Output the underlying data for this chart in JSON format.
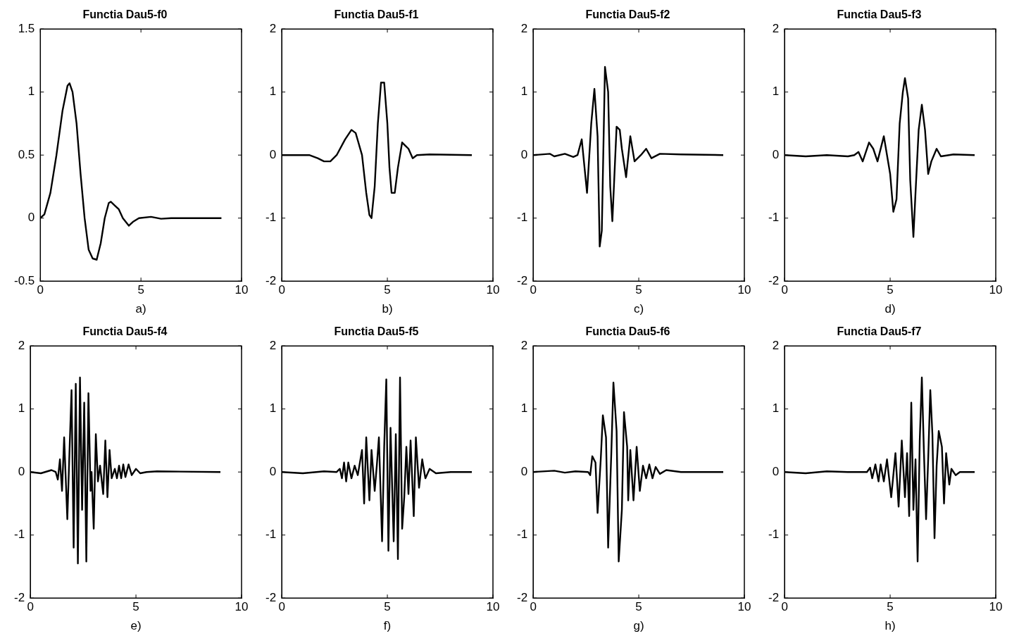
{
  "chart_data": [
    {
      "type": "line",
      "title": "Functia Dau5-f0",
      "xlabel": "a)",
      "color": "#000000",
      "marker": "none",
      "xlim": [
        0,
        10
      ],
      "xticks": [
        0,
        5,
        10
      ],
      "ylim": [
        -0.5,
        1.5
      ],
      "yticks": [
        -0.5,
        0,
        0.5,
        1,
        1.5
      ],
      "x": [
        0,
        0.2,
        0.5,
        0.8,
        1.1,
        1.35,
        1.45,
        1.6,
        1.8,
        2.0,
        2.2,
        2.4,
        2.6,
        2.8,
        3.0,
        3.2,
        3.4,
        3.5,
        3.7,
        3.9,
        4.1,
        4.4,
        4.6,
        4.9,
        5.5,
        6,
        6.5,
        9
      ],
      "values": [
        0,
        0.03,
        0.2,
        0.5,
        0.85,
        1.05,
        1.07,
        1.0,
        0.75,
        0.35,
        0.0,
        -0.25,
        -0.32,
        -0.33,
        -0.2,
        0.0,
        0.12,
        0.13,
        0.1,
        0.07,
        0.0,
        -0.06,
        -0.03,
        0.0,
        0.01,
        -0.005,
        0,
        0
      ]
    },
    {
      "type": "line",
      "title": "Functia Dau5-f1",
      "xlabel": "b)",
      "color": "#000000",
      "marker": "none",
      "xlim": [
        0,
        10
      ],
      "xticks": [
        0,
        5,
        10
      ],
      "ylim": [
        -2,
        2
      ],
      "yticks": [
        -2,
        -1,
        0,
        1,
        2
      ],
      "x": [
        0,
        1.3,
        1.7,
        2.0,
        2.3,
        2.6,
        3.0,
        3.3,
        3.5,
        3.8,
        4.0,
        4.15,
        4.25,
        4.4,
        4.55,
        4.7,
        4.85,
        5.0,
        5.1,
        5.2,
        5.35,
        5.5,
        5.7,
        5.85,
        6.0,
        6.2,
        6.4,
        7,
        9
      ],
      "values": [
        0,
        0,
        -0.05,
        -0.1,
        -0.1,
        0.0,
        0.25,
        0.4,
        0.35,
        0.0,
        -0.6,
        -0.95,
        -1.0,
        -0.5,
        0.5,
        1.15,
        1.15,
        0.5,
        -0.2,
        -0.6,
        -0.6,
        -0.2,
        0.2,
        0.15,
        0.1,
        -0.05,
        0.0,
        0.01,
        0
      ]
    },
    {
      "type": "line",
      "title": "Functia Dau5-f2",
      "xlabel": "c)",
      "color": "#000000",
      "marker": "none",
      "xlim": [
        0,
        10
      ],
      "xticks": [
        0,
        5,
        10
      ],
      "ylim": [
        -2,
        2
      ],
      "yticks": [
        -2,
        -1,
        0,
        1,
        2
      ],
      "x": [
        0,
        0.8,
        1.0,
        1.5,
        1.9,
        2.1,
        2.3,
        2.55,
        2.75,
        2.9,
        3.05,
        3.15,
        3.25,
        3.4,
        3.55,
        3.65,
        3.75,
        3.95,
        4.1,
        4.2,
        4.4,
        4.6,
        4.8,
        5.1,
        5.35,
        5.6,
        6,
        7,
        9
      ],
      "values": [
        0,
        0.02,
        -0.02,
        0.02,
        -0.03,
        0.0,
        0.25,
        -0.6,
        0.5,
        1.05,
        0.3,
        -1.45,
        -1.2,
        1.4,
        1.0,
        -0.5,
        -1.05,
        0.45,
        0.4,
        0.1,
        -0.35,
        0.3,
        -0.1,
        0.0,
        0.1,
        -0.05,
        0.02,
        0.01,
        0
      ]
    },
    {
      "type": "line",
      "title": "Functia Dau5-f3",
      "xlabel": "d)",
      "color": "#000000",
      "marker": "none",
      "xlim": [
        0,
        10
      ],
      "xticks": [
        0,
        5,
        10
      ],
      "ylim": [
        -2,
        2
      ],
      "yticks": [
        -2,
        -1,
        0,
        1,
        2
      ],
      "x": [
        0,
        1,
        2,
        3,
        3.3,
        3.5,
        3.7,
        4.0,
        4.2,
        4.4,
        4.7,
        4.85,
        5.0,
        5.15,
        5.3,
        5.45,
        5.6,
        5.7,
        5.85,
        5.95,
        6.1,
        6.2,
        6.35,
        6.5,
        6.65,
        6.8,
        6.95,
        7.2,
        7.4,
        8,
        9
      ],
      "values": [
        0,
        -0.02,
        0.0,
        -0.02,
        0.0,
        0.05,
        -0.1,
        0.2,
        0.1,
        -0.1,
        0.3,
        0.0,
        -0.3,
        -0.9,
        -0.7,
        0.5,
        1.0,
        1.22,
        0.9,
        -0.4,
        -1.3,
        -0.6,
        0.4,
        0.8,
        0.4,
        -0.3,
        -0.1,
        0.1,
        -0.02,
        0.01,
        0
      ]
    },
    {
      "type": "line",
      "title": "Functia Dau5-f4",
      "xlabel": "e)",
      "color": "#000000",
      "marker": "none",
      "xlim": [
        0,
        10
      ],
      "xticks": [
        0,
        5,
        10
      ],
      "ylim": [
        -2,
        2
      ],
      "yticks": [
        -2,
        -1,
        0,
        1,
        2
      ],
      "x": [
        0,
        0.5,
        1.0,
        1.2,
        1.3,
        1.4,
        1.5,
        1.6,
        1.75,
        1.85,
        1.95,
        2.05,
        2.15,
        2.25,
        2.35,
        2.45,
        2.55,
        2.65,
        2.75,
        2.85,
        2.9,
        3.0,
        3.1,
        3.2,
        3.3,
        3.45,
        3.55,
        3.65,
        3.75,
        3.85,
        4.0,
        4.1,
        4.2,
        4.3,
        4.4,
        4.5,
        4.65,
        4.8,
        5.0,
        5.2,
        5.5,
        6,
        9
      ],
      "values": [
        0,
        -0.02,
        0.03,
        0.0,
        -0.12,
        0.2,
        -0.3,
        0.55,
        -0.75,
        0.3,
        1.3,
        -1.2,
        1.4,
        -1.45,
        1.5,
        -0.6,
        1.1,
        -1.42,
        1.25,
        -0.3,
        0.0,
        -0.9,
        0.6,
        -0.15,
        0.1,
        -0.35,
        0.5,
        -0.4,
        0.35,
        -0.1,
        0.05,
        -0.1,
        0.1,
        -0.1,
        0.12,
        -0.08,
        0.12,
        -0.05,
        0.05,
        -0.02,
        0.0,
        0.01,
        0
      ]
    },
    {
      "type": "line",
      "title": "Functia Dau5-f5",
      "xlabel": "f)",
      "color": "#000000",
      "marker": "none",
      "xlim": [
        0,
        10
      ],
      "xticks": [
        0,
        5,
        10
      ],
      "ylim": [
        -2,
        2
      ],
      "yticks": [
        -2,
        -1,
        0,
        1,
        2
      ],
      "x": [
        0,
        1,
        2,
        2.6,
        2.75,
        2.85,
        2.95,
        3.05,
        3.15,
        3.3,
        3.45,
        3.6,
        3.8,
        3.9,
        4.0,
        4.15,
        4.25,
        4.4,
        4.5,
        4.6,
        4.75,
        4.85,
        4.95,
        5.05,
        5.15,
        5.3,
        5.4,
        5.5,
        5.6,
        5.7,
        5.8,
        5.9,
        6.0,
        6.1,
        6.25,
        6.35,
        6.5,
        6.65,
        6.8,
        7.0,
        7.3,
        8,
        9
      ],
      "values": [
        0,
        -0.02,
        0.01,
        0.0,
        0.05,
        -0.1,
        0.15,
        -0.15,
        0.15,
        -0.1,
        0.1,
        -0.05,
        0.35,
        -0.5,
        0.55,
        -0.45,
        0.35,
        -0.3,
        0.1,
        0.55,
        -1.1,
        0.4,
        1.47,
        -1.25,
        0.7,
        -1.1,
        0.6,
        -1.38,
        1.5,
        -0.9,
        -0.4,
        0.4,
        -0.35,
        0.5,
        -0.7,
        0.55,
        -0.25,
        0.2,
        -0.1,
        0.05,
        -0.02,
        0,
        0
      ]
    },
    {
      "type": "line",
      "title": "Functia Dau5-f6",
      "xlabel": "g)",
      "color": "#000000",
      "marker": "none",
      "xlim": [
        0,
        10
      ],
      "xticks": [
        0,
        5,
        10
      ],
      "ylim": [
        -2,
        2
      ],
      "yticks": [
        -2,
        -1,
        0,
        1,
        2
      ],
      "x": [
        0,
        1,
        1.5,
        2,
        2.6,
        2.7,
        2.8,
        2.95,
        3.05,
        3.2,
        3.3,
        3.45,
        3.55,
        3.7,
        3.8,
        3.95,
        4.05,
        4.2,
        4.3,
        4.45,
        4.5,
        4.6,
        4.75,
        4.9,
        5.05,
        5.2,
        5.35,
        5.5,
        5.65,
        5.8,
        6.0,
        6.3,
        7,
        9
      ],
      "values": [
        0,
        0.02,
        -0.01,
        0.01,
        0.0,
        -0.05,
        0.25,
        0.15,
        -0.65,
        0.2,
        0.9,
        0.55,
        -1.2,
        0.3,
        1.42,
        0.65,
        -1.42,
        -0.6,
        0.95,
        0.4,
        -0.45,
        0.35,
        -0.45,
        0.4,
        -0.3,
        0.1,
        -0.1,
        0.12,
        -0.1,
        0.08,
        -0.03,
        0.03,
        0.0,
        0
      ]
    },
    {
      "type": "line",
      "title": "Functia Dau5-f7",
      "xlabel": "h)",
      "color": "#000000",
      "marker": "none",
      "xlim": [
        0,
        10
      ],
      "xticks": [
        0,
        5,
        10
      ],
      "ylim": [
        -2,
        2
      ],
      "yticks": [
        -2,
        -1,
        0,
        1,
        2
      ],
      "x": [
        0,
        1,
        2,
        3,
        3.9,
        4.05,
        4.15,
        4.3,
        4.45,
        4.55,
        4.7,
        4.85,
        5.05,
        5.25,
        5.4,
        5.55,
        5.7,
        5.8,
        5.9,
        6.0,
        6.1,
        6.2,
        6.3,
        6.4,
        6.5,
        6.6,
        6.7,
        6.8,
        6.9,
        7.0,
        7.1,
        7.2,
        7.3,
        7.45,
        7.55,
        7.65,
        7.8,
        7.9,
        8.1,
        8.3,
        9
      ],
      "values": [
        0,
        -0.02,
        0.01,
        0.0,
        0.0,
        0.07,
        -0.1,
        0.12,
        -0.15,
        0.12,
        -0.15,
        0.2,
        -0.4,
        0.3,
        -0.55,
        0.5,
        -0.4,
        0.3,
        -0.7,
        1.1,
        -0.6,
        0.2,
        -1.42,
        0.5,
        1.5,
        0.3,
        -0.75,
        0.2,
        1.3,
        0.6,
        -1.05,
        0.1,
        0.65,
        0.4,
        -0.5,
        0.3,
        -0.2,
        0.05,
        -0.05,
        0.0,
        0
      ]
    }
  ]
}
